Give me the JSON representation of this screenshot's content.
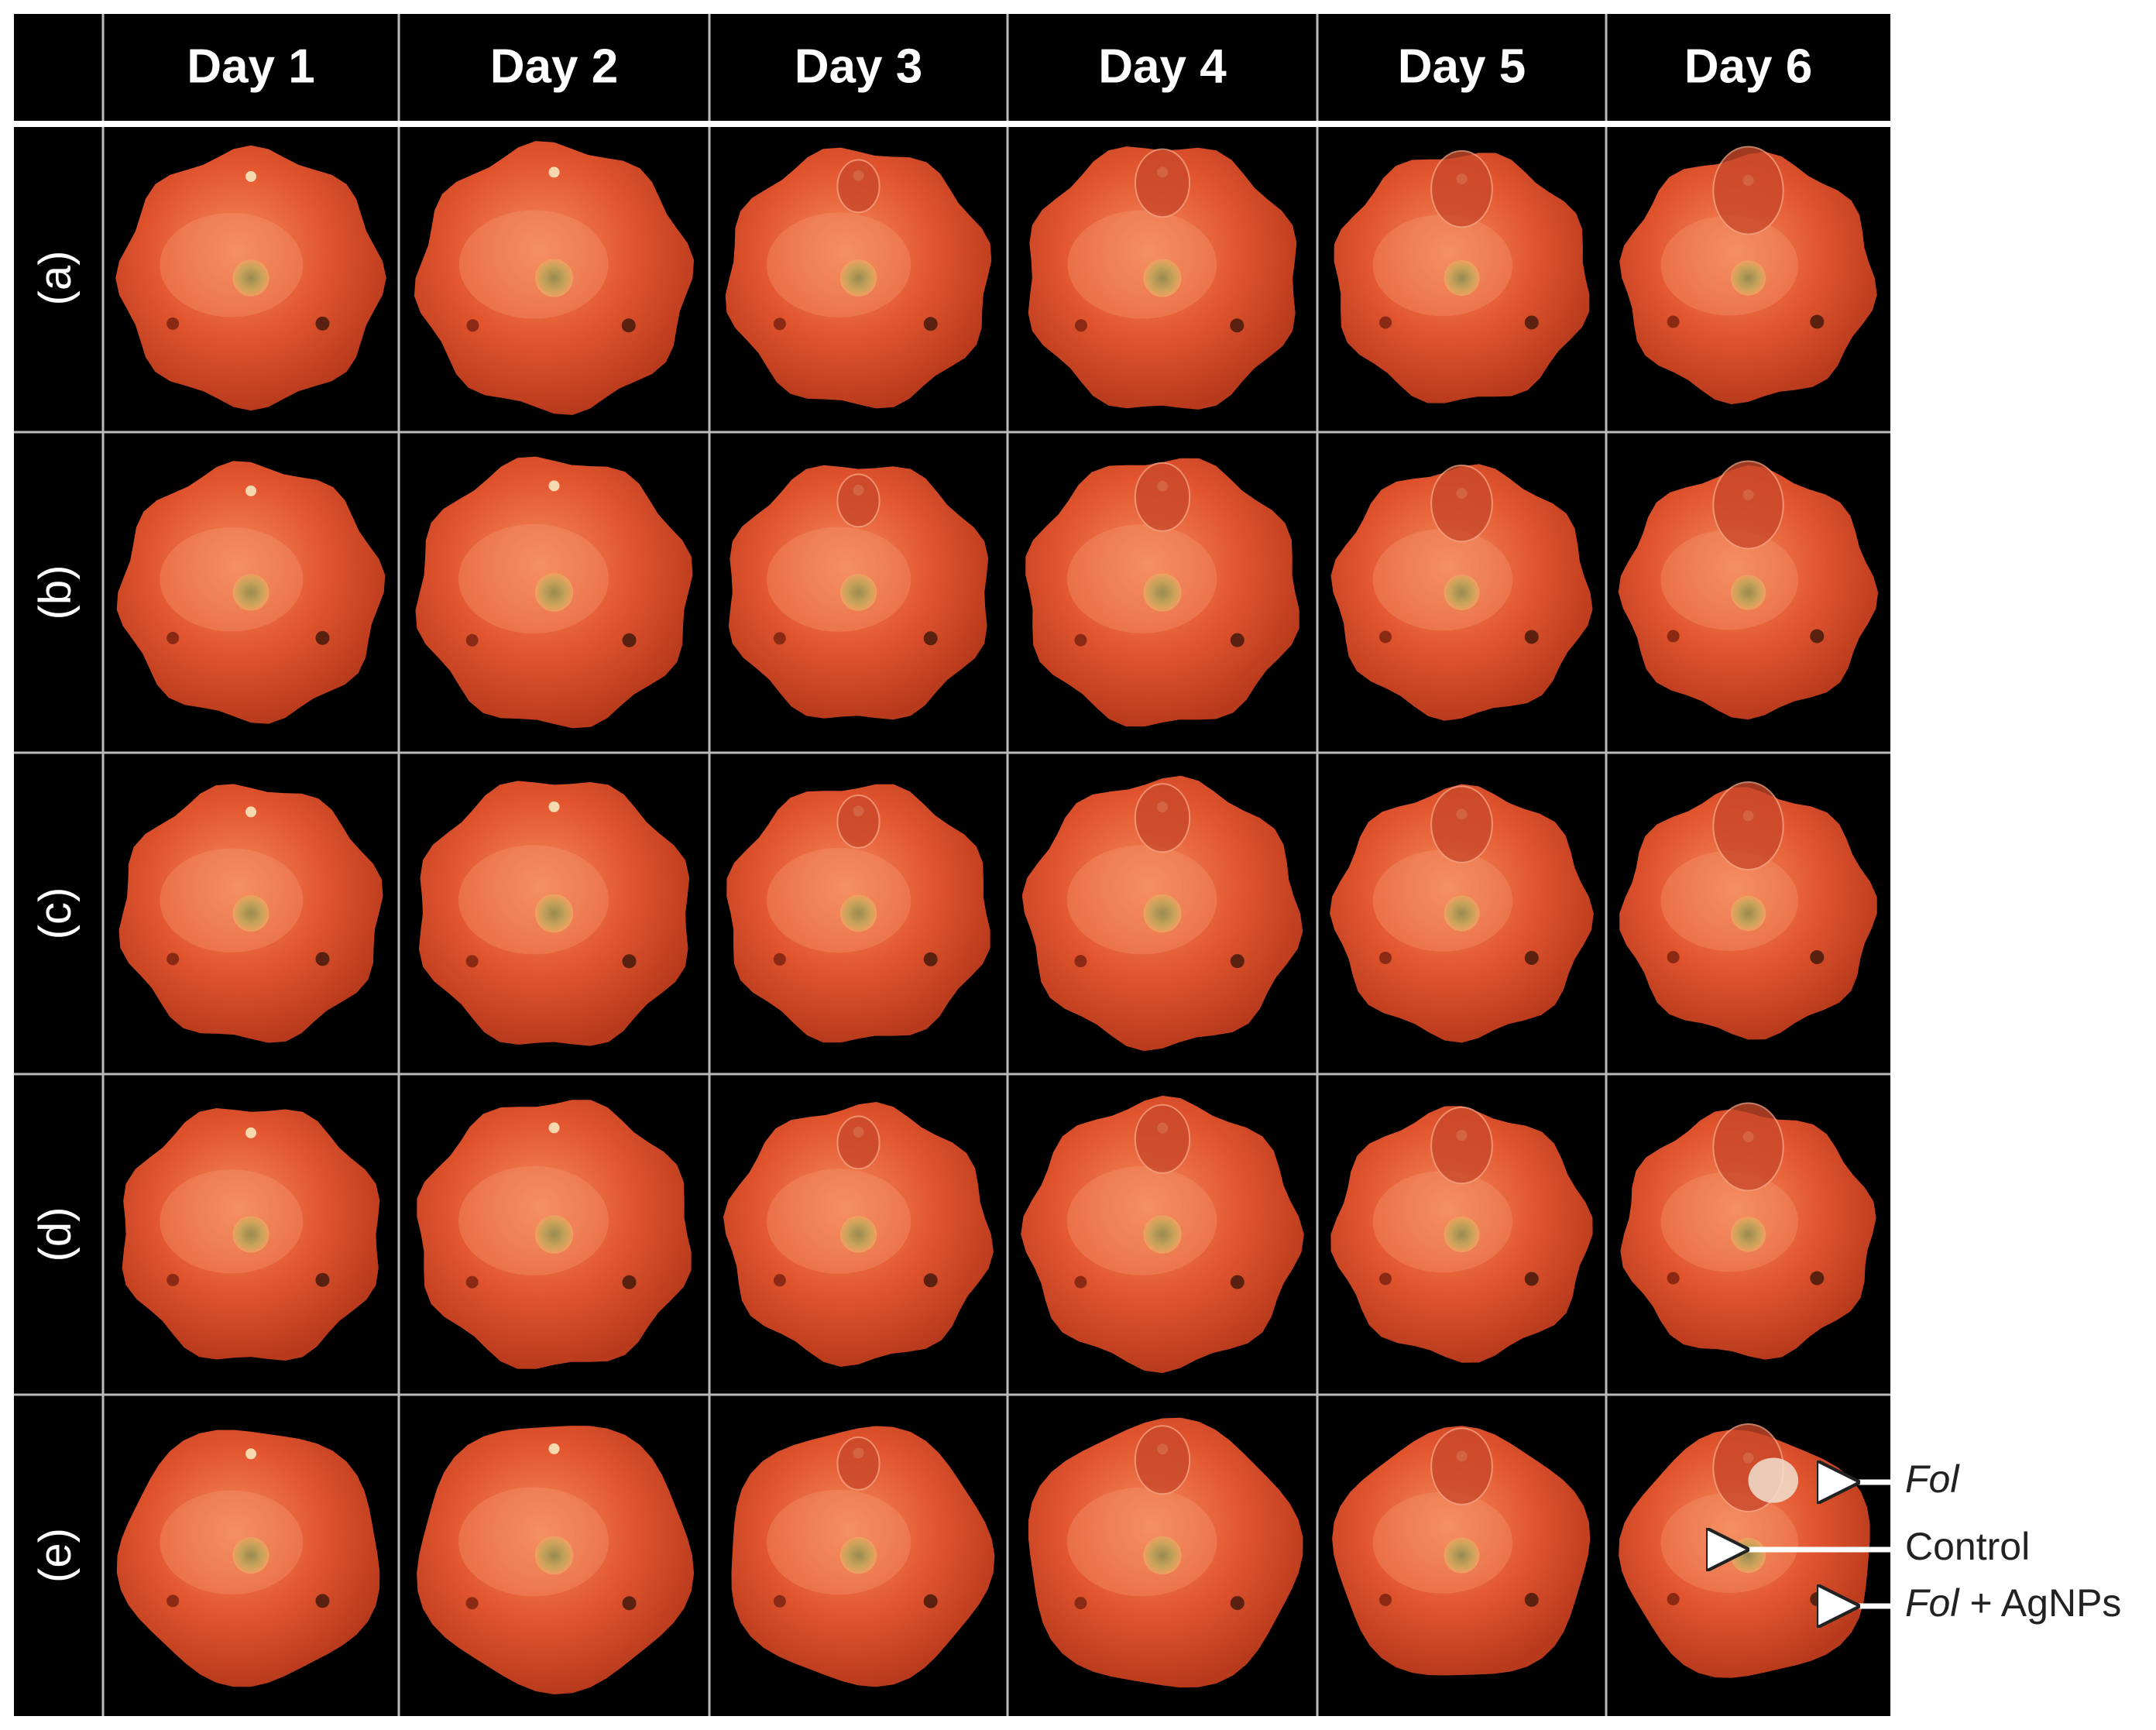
{
  "columns": [
    "Day 1",
    "Day 2",
    "Day 3",
    "Day 4",
    "Day 5",
    "Day 6"
  ],
  "rows": [
    "(a)",
    "(b)",
    "(c)",
    "(d)",
    "(e)"
  ],
  "annotations": [
    {
      "italic": "Fol"
    },
    {
      "text": "Control"
    },
    {
      "italic": "Fol",
      "text": "+ AgNPs"
    }
  ]
}
